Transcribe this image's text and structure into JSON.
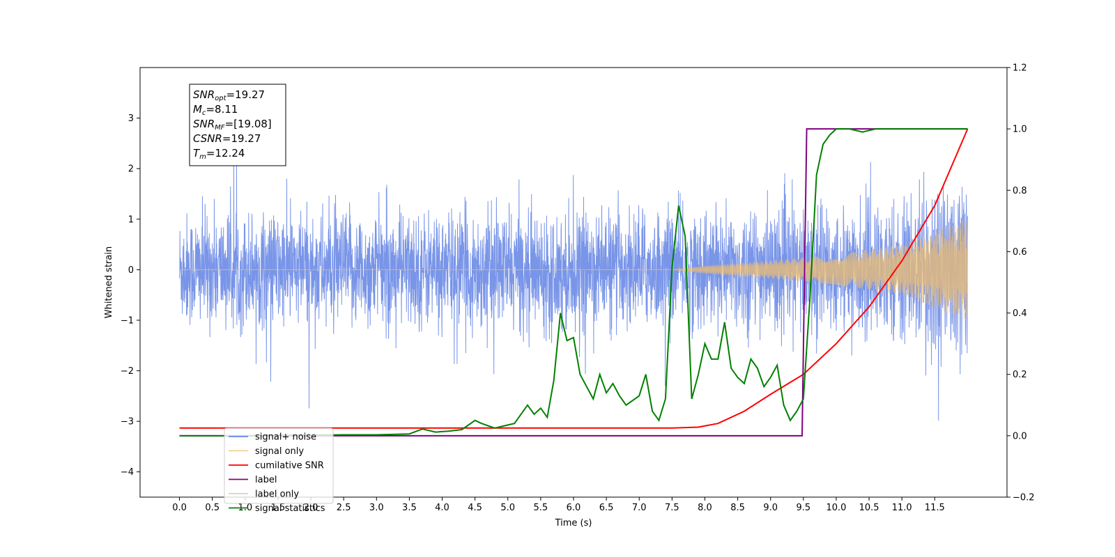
{
  "chart_data": {
    "type": "line",
    "title": "",
    "xlabel": "Time (s)",
    "ylabel": "Whitened strain",
    "y2label": "",
    "xlim": [
      -0.6,
      12.6
    ],
    "ylim": [
      -4.5,
      4.0
    ],
    "y2lim": [
      -0.2,
      1.2
    ],
    "grid": false,
    "legend_position": "lower-left",
    "x_ticks": [
      "0.0",
      "0.5",
      "1.0",
      "1.5",
      "2.0",
      "2.5",
      "3.0",
      "3.5",
      "4.0",
      "4.5",
      "5.0",
      "5.5",
      "6.0",
      "6.5",
      "7.0",
      "7.5",
      "8.0",
      "8.5",
      "9.0",
      "9.5",
      "10.0",
      "10.5",
      "11.0",
      "11.5"
    ],
    "y_ticks": [
      "3",
      "2",
      "1",
      "0",
      "−1",
      "−2",
      "−3",
      "−4"
    ],
    "y2_ticks": [
      "1.2",
      "1.0",
      "0.8",
      "0.6",
      "0.4",
      "0.2",
      "0.0",
      "−0.2"
    ],
    "annotation": {
      "snr_opt": {
        "main": "SNR",
        "sub": "opt",
        "value": "=19.27"
      },
      "mc": {
        "main": "M",
        "sub": "c",
        "value": "=8.11"
      },
      "snr_mf": {
        "main": "SNR",
        "sub": "MF",
        "value": "=[19.08]"
      },
      "csnr": {
        "main": "CSNR",
        "value": "=19.27"
      },
      "tm": {
        "main": "T",
        "sub": "m",
        "value": "=12.24"
      }
    },
    "series": [
      {
        "name": "signal+ noise",
        "color": "#6a8ae6",
        "axis": "left",
        "description_values": "noise band approx +-1.5 with spikes to +-3.5 over t=0..12"
      },
      {
        "name": "signal only",
        "color": "#f5c06a",
        "axis": "left",
        "envelope": {
          "x": [
            0.0,
            7.5,
            8.0,
            9.0,
            10.0,
            11.0,
            12.0
          ],
          "y": [
            0.0,
            0.0,
            0.08,
            0.18,
            0.3,
            0.5,
            1.0
          ]
        }
      },
      {
        "name": "cumilative SNR",
        "color": "#ff0000",
        "axis": "right",
        "x": [
          0.0,
          7.5,
          7.9,
          8.2,
          8.6,
          9.0,
          9.5,
          10.0,
          10.5,
          11.0,
          11.5,
          12.0
        ],
        "y": [
          0.025,
          0.025,
          0.028,
          0.04,
          0.08,
          0.135,
          0.2,
          0.3,
          0.42,
          0.57,
          0.75,
          1.0
        ]
      },
      {
        "name": "label",
        "color": "#800080",
        "axis": "right",
        "x": [
          0.0,
          9.48,
          9.55,
          12.0
        ],
        "y": [
          0.0,
          0.0,
          1.0,
          1.0
        ]
      },
      {
        "name": "label only",
        "color": "#d3d3d3",
        "axis": "right",
        "x": [],
        "y": []
      },
      {
        "name": "signal statistics",
        "color": "#008000",
        "axis": "right",
        "x": [
          0.0,
          0.5,
          1.0,
          1.5,
          2.0,
          2.5,
          3.0,
          3.5,
          3.7,
          3.9,
          4.1,
          4.3,
          4.5,
          4.6,
          4.8,
          5.0,
          5.1,
          5.3,
          5.4,
          5.5,
          5.6,
          5.7,
          5.8,
          5.9,
          6.0,
          6.1,
          6.2,
          6.3,
          6.4,
          6.5,
          6.6,
          6.7,
          6.8,
          7.0,
          7.1,
          7.2,
          7.3,
          7.4,
          7.5,
          7.6,
          7.7,
          7.8,
          7.9,
          8.0,
          8.1,
          8.2,
          8.3,
          8.4,
          8.5,
          8.6,
          8.7,
          8.8,
          8.9,
          9.0,
          9.1,
          9.2,
          9.3,
          9.4,
          9.5,
          9.6,
          9.7,
          9.8,
          9.9,
          10.0,
          10.2,
          10.4,
          10.6,
          11.0,
          12.0
        ],
        "y": [
          0.0,
          0.0,
          0.0,
          0.002,
          0.002,
          0.003,
          0.003,
          0.006,
          0.022,
          0.012,
          0.015,
          0.02,
          0.05,
          0.04,
          0.025,
          0.035,
          0.04,
          0.1,
          0.07,
          0.09,
          0.06,
          0.18,
          0.4,
          0.31,
          0.32,
          0.2,
          0.16,
          0.12,
          0.2,
          0.14,
          0.17,
          0.13,
          0.1,
          0.13,
          0.2,
          0.08,
          0.05,
          0.12,
          0.55,
          0.75,
          0.65,
          0.12,
          0.2,
          0.3,
          0.25,
          0.25,
          0.37,
          0.22,
          0.19,
          0.17,
          0.25,
          0.22,
          0.16,
          0.19,
          0.23,
          0.1,
          0.05,
          0.08,
          0.12,
          0.45,
          0.85,
          0.95,
          0.98,
          1.0,
          1.0,
          0.99,
          1.0,
          1.0,
          1.0
        ]
      }
    ]
  }
}
